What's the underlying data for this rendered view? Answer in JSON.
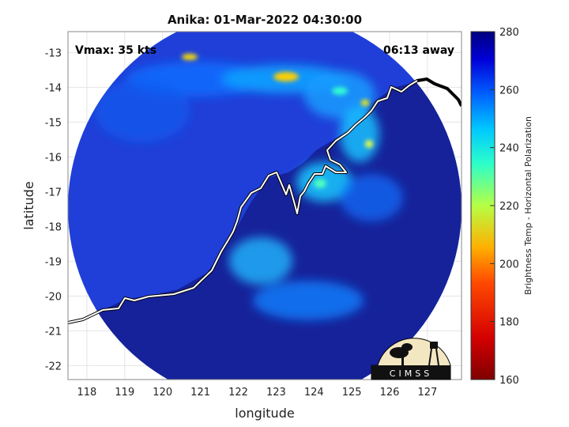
{
  "title": "Anika: 01-Mar-2022 04:30:00",
  "vmax_label": "Vmax: 35 kts",
  "time_away_label": "06:13 away",
  "xlabel": "longitude",
  "ylabel": "latitude",
  "x_ticks": [
    "118",
    "119",
    "120",
    "121",
    "122",
    "123",
    "124",
    "125",
    "126",
    "127"
  ],
  "y_ticks": [
    "-13",
    "-14",
    "-15",
    "-16",
    "-17",
    "-18",
    "-19",
    "-20",
    "-21",
    "-22"
  ],
  "xlim": [
    117.5,
    127.9
  ],
  "ylim": [
    -22.4,
    -12.4
  ],
  "colorbar": {
    "label": "Brightness Temp - Horizontal Polarization",
    "ticks": [
      "280",
      "260",
      "240",
      "220",
      "200",
      "180",
      "160"
    ],
    "range": [
      160,
      280
    ],
    "colormap": "jet"
  },
  "colors": {
    "swath_background": "#1f3fd8",
    "land": "#16229a",
    "coastline": "#ffffff",
    "outside_coastline": "#000000"
  },
  "logo": {
    "text": "CIMSS"
  }
}
